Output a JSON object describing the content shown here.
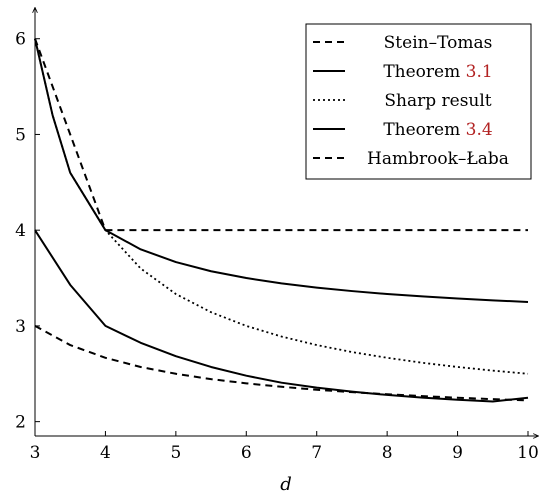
{
  "chart_data": {
    "type": "line",
    "xlabel": "d",
    "ylabel": "",
    "xlim": [
      3,
      10
    ],
    "ylim": [
      1.85,
      6.3
    ],
    "xticks": [
      3,
      4,
      5,
      6,
      7,
      8,
      9,
      10
    ],
    "yticks": [
      2,
      3,
      4,
      5,
      6
    ],
    "grid": false,
    "legend_position": "top-right",
    "series": [
      {
        "name": "Stein–Tomas",
        "ref": "",
        "style": "dashed",
        "x": [
          3,
          4,
          5,
          6,
          7,
          8,
          9,
          10
        ],
        "y": [
          6.0,
          4.0,
          4.0,
          4.0,
          4.0,
          4.0,
          4.0,
          4.0
        ]
      },
      {
        "name": "Theorem ",
        "ref": "3.1",
        "style": "solid",
        "x": [
          3,
          3.25,
          3.5,
          3.75,
          4,
          4.5,
          5,
          5.5,
          6,
          6.5,
          7,
          7.5,
          8,
          8.5,
          9,
          9.5,
          10
        ],
        "y": [
          6.0,
          5.2,
          4.6,
          4.3,
          4.0,
          3.8,
          3.667,
          3.571,
          3.5,
          3.444,
          3.4,
          3.364,
          3.333,
          3.308,
          3.286,
          3.267,
          3.25
        ]
      },
      {
        "name": "Sharp result",
        "ref": "",
        "style": "dotted",
        "x": [
          3,
          3.25,
          3.5,
          3.75,
          4,
          4.5,
          5,
          5.5,
          6,
          6.5,
          7,
          7.5,
          8,
          8.5,
          9,
          9.5,
          10
        ],
        "y": [
          6.0,
          5.2,
          4.6,
          4.3,
          4.0,
          3.6,
          3.333,
          3.143,
          3.0,
          2.889,
          2.8,
          2.727,
          2.667,
          2.615,
          2.571,
          2.533,
          2.5
        ]
      },
      {
        "name": "Theorem ",
        "ref": "3.4",
        "style": "solid",
        "x": [
          3,
          3.5,
          4,
          4.5,
          5,
          5.5,
          6,
          6.5,
          7,
          7.5,
          8,
          8.5,
          9,
          9.5,
          10
        ],
        "y": [
          4.0,
          3.429,
          3.0,
          2.824,
          2.684,
          2.571,
          2.48,
          2.407,
          2.355,
          2.313,
          2.279,
          2.251,
          2.228,
          2.21,
          2.25
        ]
      },
      {
        "name": "Hambrook–Łaba",
        "ref": "",
        "style": "dashed",
        "x": [
          3,
          3.5,
          4,
          4.5,
          5,
          5.5,
          6,
          6.5,
          7,
          7.5,
          8,
          8.5,
          9,
          9.5,
          10
        ],
        "y": [
          3.0,
          2.8,
          2.667,
          2.571,
          2.5,
          2.444,
          2.4,
          2.364,
          2.333,
          2.308,
          2.286,
          2.267,
          2.25,
          2.235,
          2.222
        ]
      }
    ]
  }
}
